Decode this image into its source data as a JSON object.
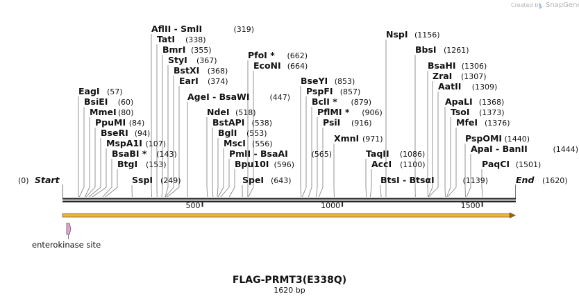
{
  "map": {
    "name": "FLAG-PRMT3(E338Q)",
    "length_label": "1620 bp",
    "length_bp": 1620,
    "start_label": "Start",
    "start_pos": "(0)",
    "end_label": "End",
    "end_pos": "(1620)",
    "ticks": [
      {
        "bp": 500,
        "label": "500"
      },
      {
        "bp": 1000,
        "label": "1000"
      },
      {
        "bp": 1500,
        "label": "1500"
      }
    ]
  },
  "sites": [
    {
      "name": "EagI",
      "pos": "(57)",
      "bp": 57
    },
    {
      "name": "BsiEI",
      "pos": "(60)",
      "bp": 60
    },
    {
      "name": "MmeI",
      "pos": "(80)",
      "bp": 80
    },
    {
      "name": "PpuMI",
      "pos": "(84)",
      "bp": 84
    },
    {
      "name": "BseRI",
      "pos": "(94)",
      "bp": 94
    },
    {
      "name": "MspA1I",
      "pos": "(107)",
      "bp": 107
    },
    {
      "name": "BsaBI *",
      "pos": "(143)",
      "bp": 143
    },
    {
      "name": "BtgI",
      "pos": "(153)",
      "bp": 153
    },
    {
      "name": "SspI",
      "pos": "(249)",
      "bp": 249
    },
    {
      "name": "AflII  -  SmlI",
      "pos": "(319)",
      "bp": 319
    },
    {
      "name": "TatI",
      "pos": "(338)",
      "bp": 338
    },
    {
      "name": "BmrI",
      "pos": "(355)",
      "bp": 355
    },
    {
      "name": "StyI",
      "pos": "(367)",
      "bp": 367
    },
    {
      "name": "BstXI",
      "pos": "(368)",
      "bp": 368
    },
    {
      "name": "EarI",
      "pos": "(374)",
      "bp": 374
    },
    {
      "name": "AgeI  -  BsaWI",
      "pos": "(447)",
      "bp": 447
    },
    {
      "name": "NdeI",
      "pos": "(518)",
      "bp": 518
    },
    {
      "name": "BstAPI",
      "pos": "(538)",
      "bp": 538
    },
    {
      "name": "BglI",
      "pos": "(553)",
      "bp": 553
    },
    {
      "name": "MscI",
      "pos": "(556)",
      "bp": 556
    },
    {
      "name": "PmlI  -  BsaAI",
      "pos": "(565)",
      "bp": 565
    },
    {
      "name": "Bpu10I",
      "pos": "(596)",
      "bp": 596
    },
    {
      "name": "SpeI",
      "pos": "(643)",
      "bp": 643
    },
    {
      "name": "PfoI *",
      "pos": "(662)",
      "bp": 662
    },
    {
      "name": "EcoNI",
      "pos": "(664)",
      "bp": 664
    },
    {
      "name": "BseYI",
      "pos": "(853)",
      "bp": 853
    },
    {
      "name": "PspFI",
      "pos": "(857)",
      "bp": 857
    },
    {
      "name": "BclI *",
      "pos": "(879)",
      "bp": 879
    },
    {
      "name": "PflMI *",
      "pos": "(906)",
      "bp": 906
    },
    {
      "name": "PsiI",
      "pos": "(916)",
      "bp": 916
    },
    {
      "name": "XmnI",
      "pos": "(971)",
      "bp": 971
    },
    {
      "name": "TaqII",
      "pos": "(1086)",
      "bp": 1086
    },
    {
      "name": "AccI",
      "pos": "(1100)",
      "bp": 1100
    },
    {
      "name": "BtsI  -  BtsαI",
      "pos": "(1139)",
      "bp": 1139
    },
    {
      "name": "NspI",
      "pos": "(1156)",
      "bp": 1156
    },
    {
      "name": "BbsI",
      "pos": "(1261)",
      "bp": 1261
    },
    {
      "name": "BsaHI",
      "pos": "(1306)",
      "bp": 1306
    },
    {
      "name": "ZraI",
      "pos": "(1307)",
      "bp": 1307
    },
    {
      "name": "AatII",
      "pos": "(1309)",
      "bp": 1309
    },
    {
      "name": "ApaLI",
      "pos": "(1368)",
      "bp": 1368
    },
    {
      "name": "TsoI",
      "pos": "(1373)",
      "bp": 1373
    },
    {
      "name": "MfeI",
      "pos": "(1376)",
      "bp": 1376
    },
    {
      "name": "PspOMI",
      "pos": "(1440)",
      "bp": 1440
    },
    {
      "name": "ApaI  -  BanII",
      "pos": "(1444)",
      "bp": 1444
    },
    {
      "name": "PaqCI",
      "pos": "(1501)",
      "bp": 1501
    }
  ],
  "features": [
    {
      "name": "enterokinase site",
      "color": "#d9a6cc"
    }
  ],
  "arrow": {
    "color": "#f0b33c",
    "edge": "#8a6420"
  },
  "branding": {
    "credit": "Created by",
    "brand": "SnapGene"
  }
}
